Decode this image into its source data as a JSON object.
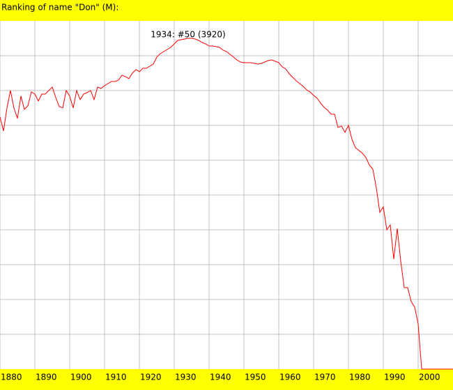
{
  "chart_data": {
    "type": "line",
    "title": "Ranking of name \"Don\" (M):",
    "annotation": "1934: #50 (3920)",
    "annotation_x": 1934,
    "annotation_y": 50,
    "x": [
      1880,
      1881,
      1882,
      1883,
      1884,
      1885,
      1886,
      1887,
      1888,
      1889,
      1890,
      1891,
      1892,
      1893,
      1894,
      1895,
      1896,
      1897,
      1898,
      1899,
      1900,
      1901,
      1902,
      1903,
      1904,
      1905,
      1906,
      1907,
      1908,
      1909,
      1910,
      1911,
      1912,
      1913,
      1914,
      1915,
      1916,
      1917,
      1918,
      1919,
      1920,
      1921,
      1922,
      1923,
      1924,
      1925,
      1926,
      1927,
      1928,
      1929,
      1930,
      1931,
      1932,
      1933,
      1934,
      1935,
      1936,
      1937,
      1938,
      1939,
      1940,
      1941,
      1942,
      1943,
      1944,
      1945,
      1946,
      1947,
      1948,
      1949,
      1950,
      1951,
      1952,
      1953,
      1954,
      1955,
      1956,
      1957,
      1958,
      1959,
      1960,
      1961,
      1962,
      1963,
      1964,
      1965,
      1966,
      1967,
      1968,
      1969,
      1970,
      1971,
      1972,
      1973,
      1974,
      1975,
      1976,
      1977,
      1978,
      1979,
      1980,
      1981,
      1982,
      1983,
      1984,
      1985,
      1986,
      1987,
      1988,
      1989,
      1990,
      1991,
      1992,
      1993,
      1994,
      1995,
      1996,
      1997,
      1998,
      1999,
      2000,
      2001,
      2002,
      2003,
      2004,
      2005,
      2006,
      2007,
      2008,
      2009,
      2010
    ],
    "series": [
      {
        "name": "Don",
        "color": "#ff0000",
        "values": [
          276,
          316,
          250,
          200,
          250,
          280,
          216,
          254,
          244,
          204,
          210,
          230,
          210,
          210,
          200,
          190,
          220,
          246,
          250,
          200,
          216,
          250,
          200,
          226,
          210,
          206,
          200,
          226,
          190,
          194,
          186,
          180,
          174,
          174,
          170,
          156,
          160,
          166,
          150,
          140,
          146,
          136,
          136,
          130,
          124,
          104,
          94,
          88,
          82,
          76,
          66,
          56,
          54,
          52,
          50,
          50,
          52,
          56,
          62,
          66,
          72,
          72,
          74,
          76,
          84,
          88,
          96,
          104,
          112,
          118,
          120,
          120,
          120,
          122,
          124,
          122,
          118,
          114,
          112,
          116,
          120,
          132,
          138,
          152,
          162,
          172,
          180,
          188,
          198,
          204,
          214,
          222,
          236,
          248,
          256,
          268,
          268,
          306,
          302,
          320,
          300,
          340,
          364,
          372,
          380,
          392,
          414,
          426,
          480,
          550,
          534,
          600,
          586,
          684,
          596,
          690,
          766,
          766,
          806,
          822,
          870,
          1000,
          1000,
          1000,
          1000,
          1000,
          1000,
          1000,
          1000,
          1000,
          1000
        ]
      }
    ],
    "xlim": [
      1880,
      2010
    ],
    "xticks": [
      1880,
      1890,
      1900,
      1910,
      1920,
      1930,
      1940,
      1950,
      1960,
      1970,
      1980,
      1990,
      2000
    ],
    "ylim": [
      1000,
      0
    ],
    "grid_y": [
      100,
      200,
      300,
      400,
      500,
      600,
      700,
      800,
      900
    ],
    "grid": true
  }
}
